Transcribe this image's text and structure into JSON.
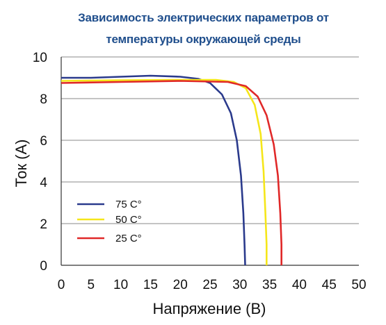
{
  "chart_data": {
    "type": "line",
    "title": "Зависимость электрических параметров от температуры окружающей среды",
    "title_lines": [
      "Зависимость электрических параметров от",
      "температуры окружающей среды"
    ],
    "xlabel": "Напряжение (В)",
    "ylabel": "Ток (А)",
    "xlim": [
      0,
      50
    ],
    "ylim": [
      0,
      10
    ],
    "x_ticks": [
      "0",
      "5",
      "10",
      "15",
      "20",
      "25",
      "30",
      "35",
      "40",
      "45",
      "50"
    ],
    "y_ticks": [
      "0",
      "2",
      "4",
      "6",
      "8",
      "10"
    ],
    "y_tick_values": [
      0,
      2,
      4,
      6,
      8,
      10
    ],
    "grid": "horizontal",
    "legend_position": "lower-left",
    "series": [
      {
        "name": "75 C°",
        "color": "#2a3a8c",
        "points": [
          [
            0,
            9.0
          ],
          [
            5,
            9.0
          ],
          [
            10,
            9.05
          ],
          [
            15,
            9.1
          ],
          [
            20,
            9.05
          ],
          [
            23,
            8.95
          ],
          [
            25,
            8.75
          ],
          [
            27,
            8.2
          ],
          [
            28.5,
            7.3
          ],
          [
            29.5,
            6.0
          ],
          [
            30.2,
            4.3
          ],
          [
            30.6,
            2.5
          ],
          [
            30.8,
            1.0
          ],
          [
            30.9,
            0
          ]
        ]
      },
      {
        "name": "50 C°",
        "color": "#f5e61a",
        "points": [
          [
            0,
            8.85
          ],
          [
            10,
            8.88
          ],
          [
            20,
            8.9
          ],
          [
            26,
            8.9
          ],
          [
            29,
            8.8
          ],
          [
            31,
            8.5
          ],
          [
            32.5,
            7.7
          ],
          [
            33.5,
            6.3
          ],
          [
            34,
            4.5
          ],
          [
            34.3,
            2.5
          ],
          [
            34.5,
            1.0
          ],
          [
            34.5,
            0
          ]
        ]
      },
      {
        "name": "25 C°",
        "color": "#e02828",
        "points": [
          [
            0,
            8.75
          ],
          [
            10,
            8.8
          ],
          [
            20,
            8.85
          ],
          [
            28,
            8.8
          ],
          [
            31,
            8.6
          ],
          [
            33,
            8.1
          ],
          [
            34.5,
            7.2
          ],
          [
            35.7,
            5.8
          ],
          [
            36.4,
            4.3
          ],
          [
            36.8,
            2.5
          ],
          [
            37,
            1.0
          ],
          [
            37,
            0
          ]
        ]
      }
    ]
  }
}
